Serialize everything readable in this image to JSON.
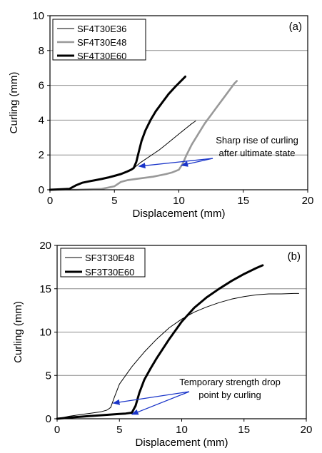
{
  "chart_data": [
    {
      "type": "line",
      "panel_label": "(a)",
      "xlabel": "Displacement (mm)",
      "ylabel": "Curling (mm)",
      "xlim": [
        0,
        20
      ],
      "ylim": [
        0,
        10
      ],
      "xticks": [
        0,
        5,
        10,
        15,
        20
      ],
      "yticks": [
        0,
        2,
        4,
        6,
        8,
        10
      ],
      "grid": "horizontal",
      "legend_position": "top-left",
      "annotation": {
        "lines": [
          "Sharp rise of curling",
          "after ultimate state"
        ],
        "arrow_targets": [
          [
            6.9,
            1.35
          ],
          [
            10.2,
            1.4
          ]
        ]
      },
      "series": [
        {
          "name": "SF4T30E36",
          "style": "thin",
          "color": "#000000",
          "x": [
            0,
            1.5,
            2.0,
            2.5,
            3.0,
            3.5,
            4.0,
            4.5,
            5.0,
            5.5,
            6.0,
            6.3,
            6.6,
            7.0,
            7.5,
            8.0,
            8.5,
            9.0,
            9.5,
            10.0,
            10.5,
            11.0,
            11.3
          ],
          "y": [
            0,
            0.05,
            0.25,
            0.4,
            0.48,
            0.55,
            0.62,
            0.7,
            0.8,
            0.9,
            1.05,
            1.15,
            1.3,
            1.55,
            1.8,
            2.05,
            2.3,
            2.6,
            2.9,
            3.2,
            3.5,
            3.8,
            3.95
          ]
        },
        {
          "name": "SF4T30E48",
          "style": "gray",
          "color": "#999999",
          "x": [
            0,
            2.0,
            4.0,
            5.0,
            5.5,
            6.0,
            7.0,
            8.0,
            9.0,
            9.5,
            10.0,
            10.3,
            10.6,
            11.0,
            11.5,
            12.0,
            12.5,
            13.0,
            13.5,
            14.0,
            14.3,
            14.5
          ],
          "y": [
            0,
            0,
            0.05,
            0.2,
            0.45,
            0.55,
            0.65,
            0.75,
            0.9,
            1.0,
            1.15,
            1.5,
            2.0,
            2.6,
            3.2,
            3.8,
            4.3,
            4.8,
            5.3,
            5.8,
            6.1,
            6.25
          ]
        },
        {
          "name": "SF4T30E60",
          "style": "thick",
          "color": "#000000",
          "x": [
            0,
            1.5,
            2.0,
            2.5,
            3.0,
            3.5,
            4.0,
            4.5,
            5.0,
            5.5,
            6.0,
            6.3,
            6.5,
            6.7,
            6.9,
            7.1,
            7.4,
            7.8,
            8.2,
            8.7,
            9.2,
            9.7,
            10.1,
            10.5
          ],
          "y": [
            0,
            0.05,
            0.25,
            0.4,
            0.48,
            0.55,
            0.62,
            0.7,
            0.8,
            0.9,
            1.05,
            1.15,
            1.25,
            1.6,
            2.2,
            2.8,
            3.4,
            4.0,
            4.5,
            5.0,
            5.5,
            5.9,
            6.2,
            6.5
          ]
        }
      ]
    },
    {
      "type": "line",
      "panel_label": "(b)",
      "xlabel": "Displacement (mm)",
      "ylabel": "Curling (mm)",
      "xlim": [
        0,
        20
      ],
      "ylim": [
        0,
        20
      ],
      "xticks": [
        0,
        5,
        10,
        15,
        20
      ],
      "yticks": [
        0,
        5,
        10,
        15,
        20
      ],
      "grid": "horizontal",
      "legend_position": "top-left",
      "annotation": {
        "lines": [
          "Temporary strength drop",
          "point by curling"
        ],
        "arrow_targets": [
          [
            4.5,
            1.8
          ],
          [
            6.0,
            0.5
          ]
        ]
      },
      "series": [
        {
          "name": "SF3T30E48",
          "style": "thin",
          "color": "#000000",
          "x": [
            0,
            1,
            2,
            3,
            3.5,
            4.0,
            4.3,
            4.6,
            5,
            6,
            7,
            8,
            9,
            10,
            11,
            12,
            13,
            14,
            15,
            16,
            17,
            18,
            19,
            19.4
          ],
          "y": [
            0,
            0.3,
            0.5,
            0.7,
            0.8,
            1.0,
            1.3,
            2.5,
            4.0,
            6.0,
            7.7,
            9.2,
            10.5,
            11.5,
            12.3,
            12.9,
            13.4,
            13.8,
            14.1,
            14.3,
            14.4,
            14.4,
            14.45,
            14.45
          ]
        },
        {
          "name": "SF3T30E60",
          "style": "thick",
          "color": "#000000",
          "x": [
            0,
            1,
            2,
            3,
            4,
            5,
            5.5,
            6.0,
            6.3,
            6.6,
            7,
            7.5,
            8,
            9,
            10,
            11,
            12,
            13,
            14,
            15,
            16,
            16.5
          ],
          "y": [
            0,
            0.15,
            0.25,
            0.35,
            0.45,
            0.55,
            0.6,
            0.7,
            1.5,
            3.0,
            4.5,
            5.8,
            7.0,
            9.2,
            11.2,
            12.8,
            14.0,
            15.0,
            15.9,
            16.7,
            17.4,
            17.7
          ]
        }
      ]
    }
  ]
}
